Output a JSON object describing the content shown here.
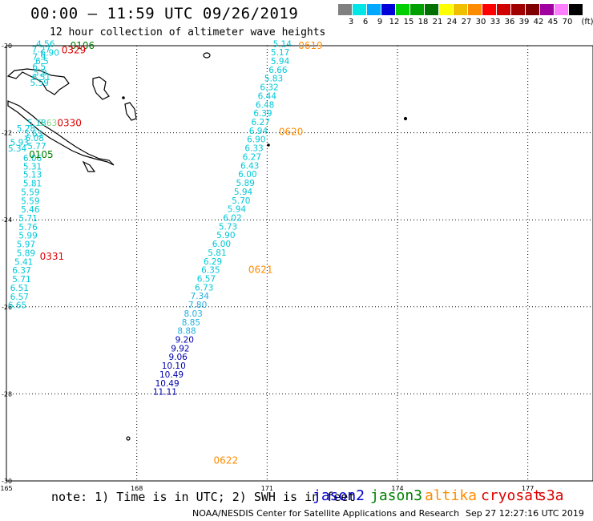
{
  "header": {
    "title": "00:00 – 11:59 UTC 09/26/2019",
    "subtitle": "12 hour collection of altimeter wave heights"
  },
  "scale": {
    "unit": "(ft)",
    "bins": [
      {
        "label": "3",
        "color": "#808080"
      },
      {
        "label": "6",
        "color": "#00e5e5"
      },
      {
        "label": "9",
        "color": "#00a8ff"
      },
      {
        "label": "12",
        "color": "#0000d8"
      },
      {
        "label": "15",
        "color": "#00d000"
      },
      {
        "label": "18",
        "color": "#00a000"
      },
      {
        "label": "21",
        "color": "#007000"
      },
      {
        "label": "24",
        "color": "#ffff00"
      },
      {
        "label": "27",
        "color": "#f0c000"
      },
      {
        "label": "30",
        "color": "#ff8c00"
      },
      {
        "label": "33",
        "color": "#ff0000"
      },
      {
        "label": "36",
        "color": "#d00000"
      },
      {
        "label": "39",
        "color": "#a00000"
      },
      {
        "label": "42",
        "color": "#800000"
      },
      {
        "label": "45",
        "color": "#a000a0"
      },
      {
        "label": "70",
        "color": "#ff80ff"
      },
      {
        "label": "",
        "color": "#000000"
      }
    ]
  },
  "axes": {
    "lon_min": 165,
    "lon_max": 178.5,
    "lat_min": -30,
    "lat_max": -20,
    "lon_ticks": [
      "165",
      "168",
      "171",
      "174",
      "177"
    ],
    "lat_ticks": [
      "-20",
      "-22",
      "-24",
      "-26",
      "-28",
      "-30"
    ]
  },
  "colors": {
    "jason2": "#0000cc",
    "jason3": "#008000",
    "altika": "#ff8c00",
    "cryosat": "#dd0000",
    "s3a": "#dd0000",
    "light_cyan": "#00c8d8",
    "cyan": "#20b0e0",
    "blue": "#0000b0"
  },
  "tracks": [
    {
      "time": "0106",
      "color": "#008000",
      "lon": 166.75,
      "lat": -20.0
    },
    {
      "time": "0329",
      "color": "#dd0000",
      "lon": 166.55,
      "lat": -20.1
    },
    {
      "time": "0330",
      "color": "#dd0000",
      "lon": 166.45,
      "lat": -21.78
    },
    {
      "time": "0105",
      "color": "#008000",
      "lon": 165.8,
      "lat": -22.5
    },
    {
      "time": "0331",
      "color": "#dd0000",
      "lon": 166.05,
      "lat": -24.84
    },
    {
      "time": "0619",
      "color": "#ff8c00",
      "lon": 172.0,
      "lat": -20.0
    },
    {
      "time": "0620",
      "color": "#ff8c00",
      "lon": 171.55,
      "lat": -21.98
    },
    {
      "time": "0621",
      "color": "#ff8c00",
      "lon": 170.85,
      "lat": -25.15
    },
    {
      "time": "0622",
      "color": "#ff8c00",
      "lon": 170.05,
      "lat": -29.53
    }
  ],
  "waves": [
    {
      "v": "4.56",
      "c": "#00c8d8",
      "lon": 165.9,
      "lat": -19.95
    },
    {
      "v": "7.27",
      "c": "#00c8d8",
      "lon": 165.8,
      "lat": -20.08
    },
    {
      "v": "6.90",
      "c": "#00c8d8",
      "lon": 166.0,
      "lat": -20.16
    },
    {
      "v": "7.9",
      "c": "#00c8d8",
      "lon": 165.75,
      "lat": -20.25
    },
    {
      "v": "6.5",
      "c": "#00c8d8",
      "lon": 165.82,
      "lat": -20.35
    },
    {
      "v": "6.5",
      "c": "#00c8d8",
      "lon": 165.75,
      "lat": -20.48
    },
    {
      "v": "5.9",
      "c": "#00c8d8",
      "lon": 165.78,
      "lat": -20.62
    },
    {
      "v": "6.51",
      "c": "#00c8d8",
      "lon": 165.8,
      "lat": -20.72
    },
    {
      "v": "5.59",
      "c": "#00c8d8",
      "lon": 165.76,
      "lat": -20.85
    },
    {
      "v": "5.18",
      "c": "#00c8d8",
      "lon": 165.7,
      "lat": -21.77
    },
    {
      "v": "5.63",
      "c": "#80d880",
      "lon": 165.95,
      "lat": -21.77
    },
    {
      "v": "5.28",
      "c": "#00c8d8",
      "lon": 165.45,
      "lat": -21.9
    },
    {
      "v": "5.63",
      "c": "#00c8d8",
      "lon": 165.62,
      "lat": -22.02
    },
    {
      "v": "6.08",
      "c": "#00c8d8",
      "lon": 165.65,
      "lat": -22.12
    },
    {
      "v": "5.93",
      "c": "#00c8d8",
      "lon": 165.3,
      "lat": -22.22
    },
    {
      "v": "5.77",
      "c": "#00c8d8",
      "lon": 165.7,
      "lat": -22.3
    },
    {
      "v": "5.34",
      "c": "#00c8d8",
      "lon": 165.25,
      "lat": -22.36
    },
    {
      "v": "6.06",
      "c": "#00c8d8",
      "lon": 165.6,
      "lat": -22.58
    },
    {
      "v": "5.31",
      "c": "#00c8d8",
      "lon": 165.6,
      "lat": -22.77
    },
    {
      "v": "5.13",
      "c": "#00c8d8",
      "lon": 165.6,
      "lat": -22.96
    },
    {
      "v": "5.81",
      "c": "#00c8d8",
      "lon": 165.6,
      "lat": -23.16
    },
    {
      "v": "5.59",
      "c": "#00c8d8",
      "lon": 165.55,
      "lat": -23.36
    },
    {
      "v": "5.59",
      "c": "#00c8d8",
      "lon": 165.55,
      "lat": -23.56
    },
    {
      "v": "5.46",
      "c": "#00c8d8",
      "lon": 165.55,
      "lat": -23.76
    },
    {
      "v": "5.71",
      "c": "#00c8d8",
      "lon": 165.5,
      "lat": -23.96
    },
    {
      "v": "5.76",
      "c": "#00c8d8",
      "lon": 165.5,
      "lat": -24.16
    },
    {
      "v": "5.99",
      "c": "#00c8d8",
      "lon": 165.5,
      "lat": -24.36
    },
    {
      "v": "5.97",
      "c": "#00c8d8",
      "lon": 165.45,
      "lat": -24.56
    },
    {
      "v": "5.89",
      "c": "#00c8d8",
      "lon": 165.45,
      "lat": -24.76
    },
    {
      "v": "5.41",
      "c": "#00c8d8",
      "lon": 165.4,
      "lat": -24.96
    },
    {
      "v": "6.37",
      "c": "#00c8d8",
      "lon": 165.35,
      "lat": -25.16
    },
    {
      "v": "5.71",
      "c": "#00c8d8",
      "lon": 165.35,
      "lat": -25.36
    },
    {
      "v": "6.51",
      "c": "#00c8d8",
      "lon": 165.3,
      "lat": -25.56
    },
    {
      "v": "6.57",
      "c": "#00c8d8",
      "lon": 165.3,
      "lat": -25.76
    },
    {
      "v": "6.65",
      "c": "#00c8d8",
      "lon": 165.25,
      "lat": -25.96
    },
    {
      "v": "5.14",
      "c": "#00c8d8",
      "lon": 171.35,
      "lat": -19.95
    },
    {
      "v": "5.17",
      "c": "#00c8d8",
      "lon": 171.3,
      "lat": -20.15
    },
    {
      "v": "5.94",
      "c": "#00c8d8",
      "lon": 171.3,
      "lat": -20.35
    },
    {
      "v": "6.66",
      "c": "#00c8d8",
      "lon": 171.25,
      "lat": -20.55
    },
    {
      "v": "5.83",
      "c": "#00c8d8",
      "lon": 171.15,
      "lat": -20.75
    },
    {
      "v": "6.32",
      "c": "#00c8d8",
      "lon": 171.05,
      "lat": -20.95
    },
    {
      "v": "6.44",
      "c": "#00c8d8",
      "lon": 171.0,
      "lat": -21.15
    },
    {
      "v": "6.48",
      "c": "#00c8d8",
      "lon": 170.95,
      "lat": -21.35
    },
    {
      "v": "6.39",
      "c": "#00c8d8",
      "lon": 170.9,
      "lat": -21.55
    },
    {
      "v": "6.27",
      "c": "#00c8d8",
      "lon": 170.85,
      "lat": -21.75
    },
    {
      "v": "6.94",
      "c": "#00c8d8",
      "lon": 170.8,
      "lat": -21.95
    },
    {
      "v": "6.90",
      "c": "#00c8d8",
      "lon": 170.75,
      "lat": -22.15
    },
    {
      "v": "6.33",
      "c": "#00c8d8",
      "lon": 170.7,
      "lat": -22.35
    },
    {
      "v": "6.27",
      "c": "#00c8d8",
      "lon": 170.65,
      "lat": -22.55
    },
    {
      "v": "6.43",
      "c": "#00c8d8",
      "lon": 170.6,
      "lat": -22.75
    },
    {
      "v": "6.00",
      "c": "#00c8d8",
      "lon": 170.55,
      "lat": -22.95
    },
    {
      "v": "5.89",
      "c": "#00c8d8",
      "lon": 170.5,
      "lat": -23.15
    },
    {
      "v": "5.94",
      "c": "#00c8d8",
      "lon": 170.45,
      "lat": -23.35
    },
    {
      "v": "5.70",
      "c": "#00c8d8",
      "lon": 170.4,
      "lat": -23.55
    },
    {
      "v": "5.94",
      "c": "#00c8d8",
      "lon": 170.3,
      "lat": -23.75
    },
    {
      "v": "6.02",
      "c": "#00c8d8",
      "lon": 170.2,
      "lat": -23.95
    },
    {
      "v": "5.73",
      "c": "#00c8d8",
      "lon": 170.1,
      "lat": -24.15
    },
    {
      "v": "5.90",
      "c": "#00c8d8",
      "lon": 170.05,
      "lat": -24.35
    },
    {
      "v": "6.00",
      "c": "#00c8d8",
      "lon": 169.95,
      "lat": -24.55
    },
    {
      "v": "5.81",
      "c": "#00c8d8",
      "lon": 169.85,
      "lat": -24.75
    },
    {
      "v": "6.29",
      "c": "#00c8d8",
      "lon": 169.75,
      "lat": -24.95
    },
    {
      "v": "6.35",
      "c": "#00c8d8",
      "lon": 169.7,
      "lat": -25.15
    },
    {
      "v": "6.57",
      "c": "#00c8d8",
      "lon": 169.6,
      "lat": -25.35
    },
    {
      "v": "6.73",
      "c": "#00c8d8",
      "lon": 169.55,
      "lat": -25.55
    },
    {
      "v": "7.34",
      "c": "#20b0e0",
      "lon": 169.45,
      "lat": -25.75
    },
    {
      "v": "7.80",
      "c": "#20b0e0",
      "lon": 169.4,
      "lat": -25.95
    },
    {
      "v": "8.03",
      "c": "#20b0e0",
      "lon": 169.3,
      "lat": -26.15
    },
    {
      "v": "8.85",
      "c": "#20b0e0",
      "lon": 169.25,
      "lat": -26.35
    },
    {
      "v": "8.88",
      "c": "#20b0e0",
      "lon": 169.15,
      "lat": -26.55
    },
    {
      "v": "9.20",
      "c": "#0000b0",
      "lon": 169.1,
      "lat": -26.75
    },
    {
      "v": "9.92",
      "c": "#0000b0",
      "lon": 169.0,
      "lat": -26.95
    },
    {
      "v": "9.06",
      "c": "#0000b0",
      "lon": 168.95,
      "lat": -27.15
    },
    {
      "v": "10.10",
      "c": "#0000b0",
      "lon": 168.85,
      "lat": -27.35
    },
    {
      "v": "10.49",
      "c": "#0000b0",
      "lon": 168.8,
      "lat": -27.55
    },
    {
      "v": "10.49",
      "c": "#0000b0",
      "lon": 168.7,
      "lat": -27.75
    },
    {
      "v": "11.11",
      "c": "#0000b0",
      "lon": 168.65,
      "lat": -27.95
    }
  ],
  "note": "note: 1) Time is in UTC; 2) SWH is in feet",
  "legend": [
    {
      "label": "jason2",
      "color": "#0000cc"
    },
    {
      "label": "jason3",
      "color": "#008000"
    },
    {
      "label": "altika",
      "color": "#ff8c00"
    },
    {
      "label": "cryosat",
      "color": "#dd0000"
    },
    {
      "label": "s3a",
      "color": "#dd0000"
    }
  ],
  "footer": {
    "credit": "NOAA/NESDIS Center for Satellite Applications and Research",
    "timestamp": "Sep 27 12:27:16 UTC 2019"
  }
}
